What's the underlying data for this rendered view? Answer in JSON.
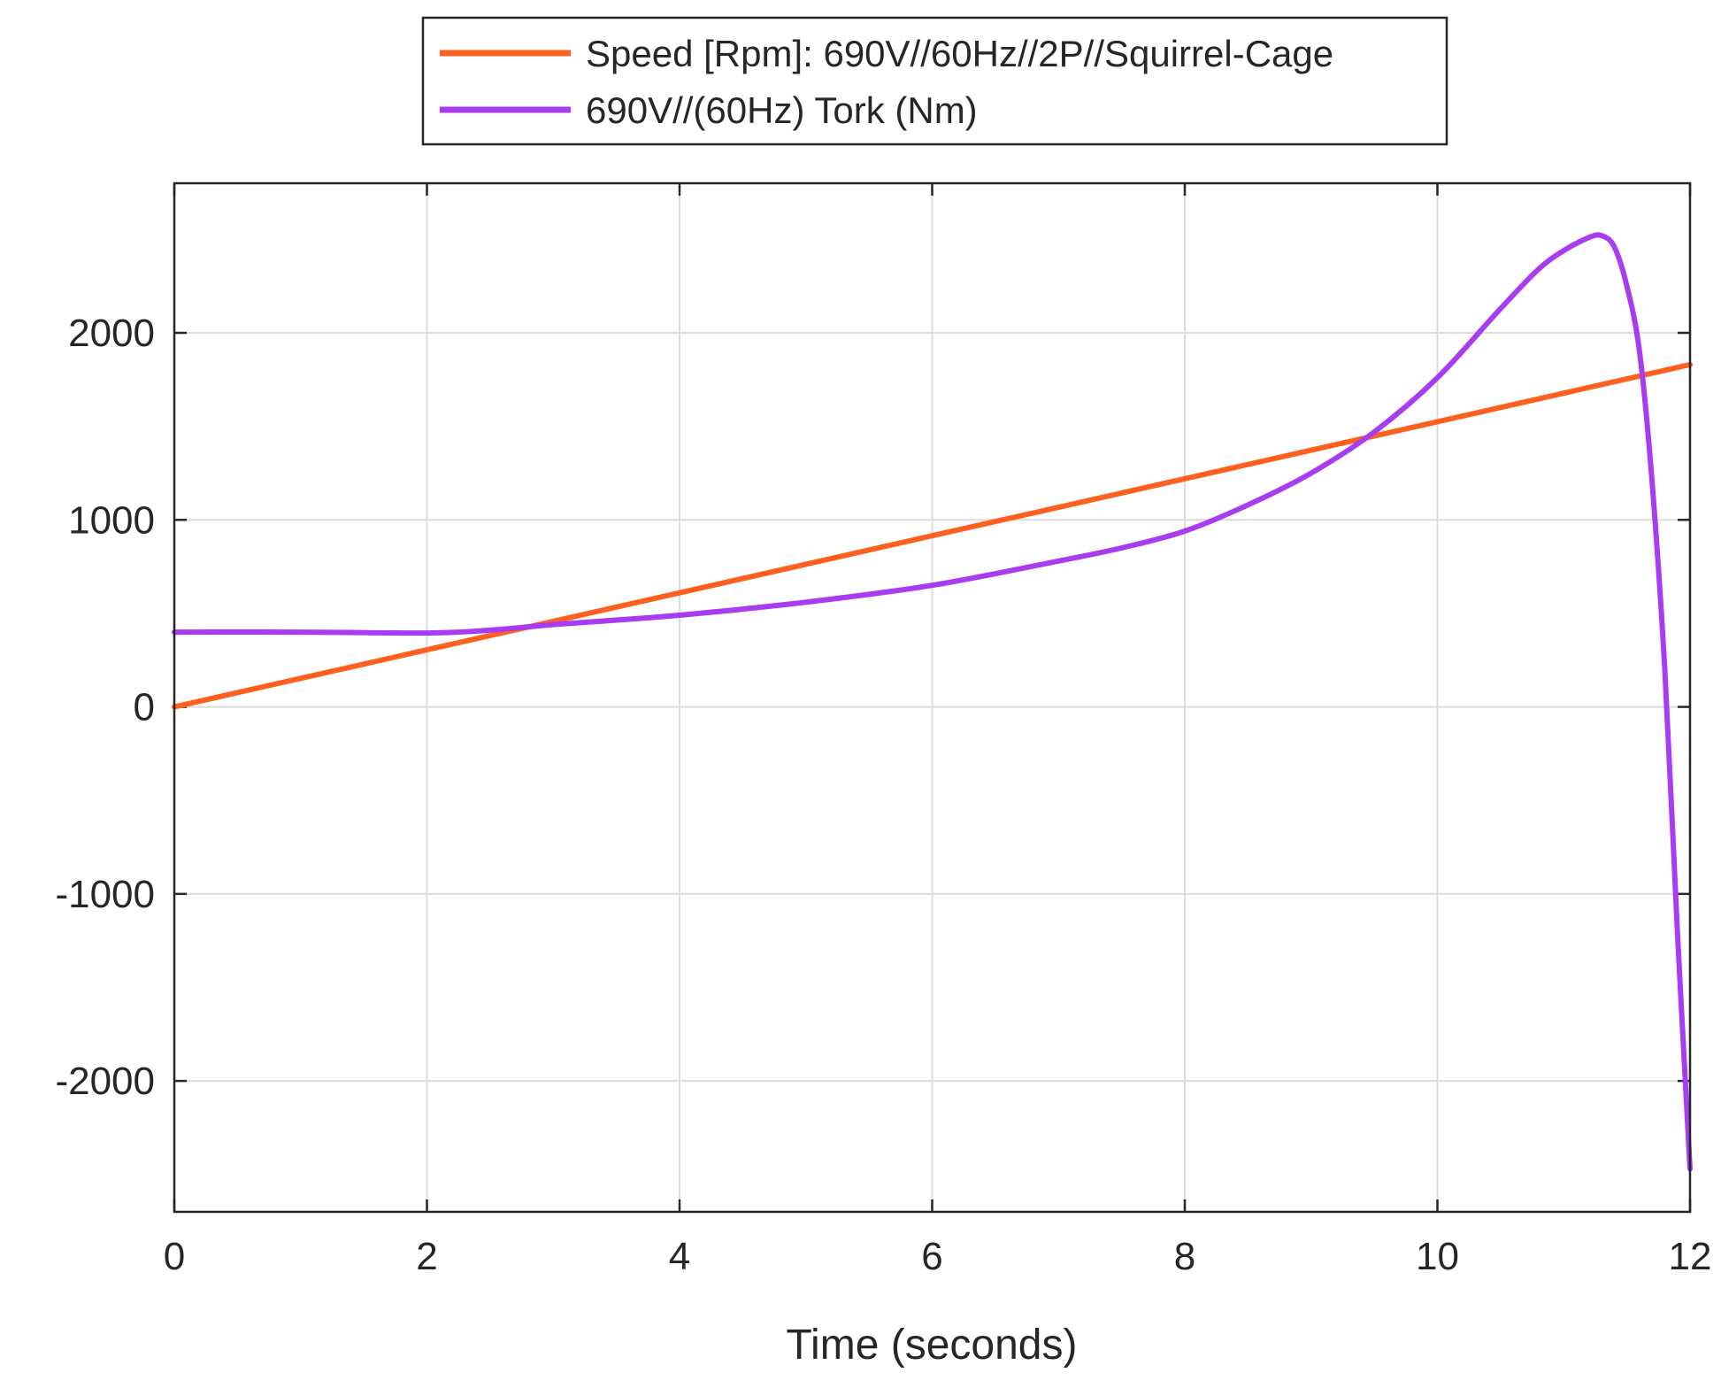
{
  "chart_data": {
    "type": "line",
    "xlabel": "Time (seconds)",
    "ylabel": "",
    "title": "",
    "xlim": [
      0,
      12
    ],
    "ylim": [
      -2700,
      2800
    ],
    "xticks": [
      0,
      2,
      4,
      6,
      8,
      10,
      12
    ],
    "yticks": [
      -2000,
      -1000,
      0,
      1000,
      2000
    ],
    "grid": true,
    "legend": "top-center, outside",
    "series": [
      {
        "name": "Speed [Rpm]: 690V//60Hz//2P//Squirrel-Cage",
        "color": "#ff5f1f",
        "x": [
          0,
          2,
          4,
          6,
          8,
          10,
          12
        ],
        "y": [
          0,
          305,
          610,
          915,
          1220,
          1525,
          1830
        ]
      },
      {
        "name": "690V//(60Hz) Tork (Nm)",
        "color": "#a83cf0",
        "x": [
          0,
          1,
          2,
          2.5,
          3,
          4,
          5,
          6,
          7,
          7.5,
          8,
          8.5,
          9,
          9.5,
          10,
          10.5,
          10.8,
          11.0,
          11.2,
          11.3,
          11.4,
          11.5,
          11.6,
          11.7,
          11.8,
          11.9,
          12.0
        ],
        "y": [
          400,
          400,
          395,
          410,
          440,
          490,
          560,
          650,
          780,
          850,
          940,
          1080,
          1250,
          1470,
          1760,
          2130,
          2340,
          2440,
          2510,
          2520,
          2460,
          2250,
          1900,
          1200,
          200,
          -1200,
          -2470
        ]
      }
    ]
  }
}
